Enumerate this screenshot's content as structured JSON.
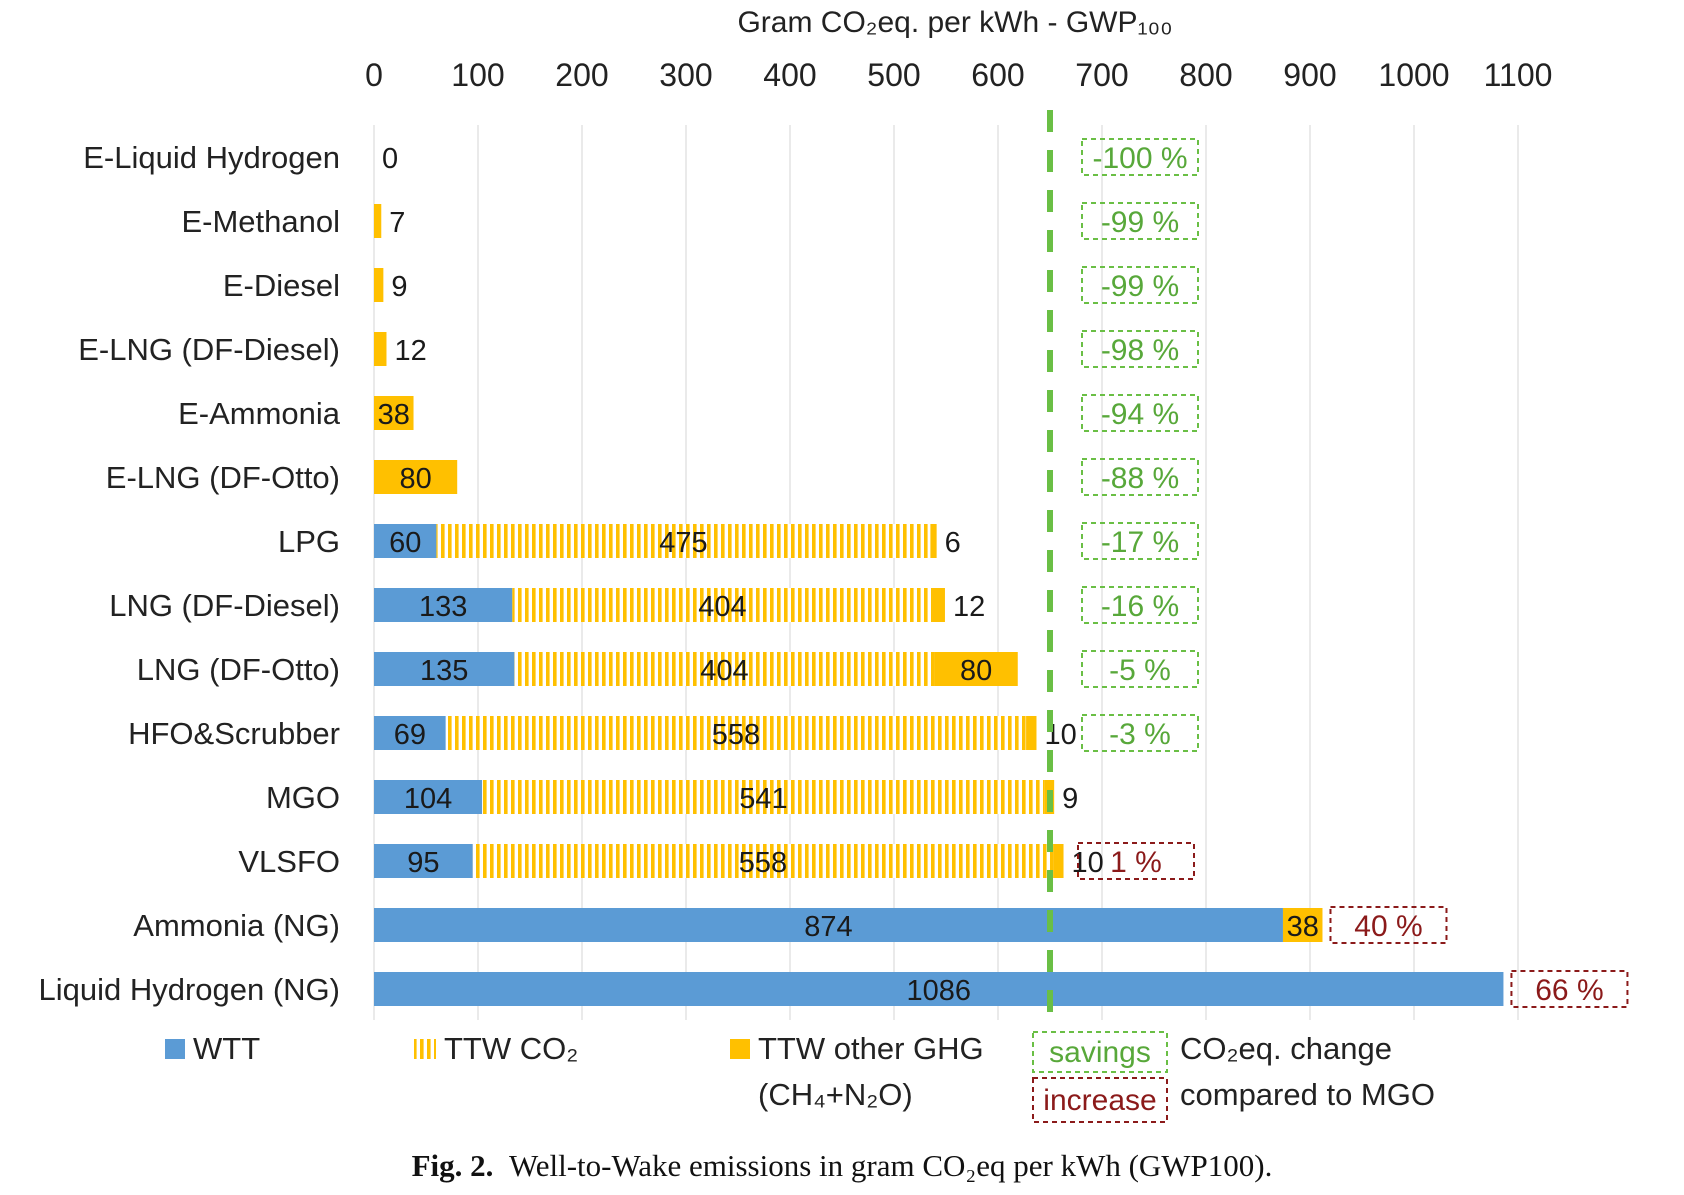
{
  "chart_data": {
    "type": "bar",
    "orientation": "horizontal",
    "stacked": true,
    "axis_title": "Gram CO₂eq. per kWh - GWP₁₀₀",
    "axis_position": "top",
    "xlim": [
      0,
      1100
    ],
    "ticks": [
      "0",
      "100",
      "200",
      "300",
      "400",
      "500",
      "600",
      "700",
      "800",
      "900",
      "1000",
      "1100"
    ],
    "tick_values": [
      0,
      100,
      200,
      300,
      400,
      500,
      600,
      700,
      800,
      900,
      1000,
      1100
    ],
    "grid": true,
    "reference_line": {
      "value": 650,
      "style": "dashed",
      "color": "#6abf45"
    },
    "categories": [
      "E-Liquid Hydrogen",
      "E-Methanol",
      "E-Diesel",
      "E-LNG (DF-Diesel)",
      "E-Ammonia",
      "E-LNG (DF-Otto)",
      "LPG",
      "LNG (DF-Diesel)",
      "LNG (DF-Otto)",
      "HFO&Scrubber",
      "MGO",
      "VLSFO",
      "Ammonia (NG)",
      "Liquid Hydrogen (NG)"
    ],
    "series": [
      {
        "name": "WTT",
        "color": "#5b9bd5",
        "pattern": "solid",
        "values": [
          0,
          0,
          0,
          0,
          0,
          0,
          60,
          133,
          135,
          69,
          104,
          95,
          874,
          1086
        ],
        "labels": [
          "",
          "",
          "",
          "",
          "",
          "",
          "60",
          "133",
          "135",
          "69",
          "104",
          "95",
          "874",
          "1086"
        ]
      },
      {
        "name": "TTW CO₂",
        "color": "#ffc000",
        "pattern": "vertical-stripes",
        "values": [
          0,
          0,
          0,
          0,
          0,
          0,
          475,
          404,
          404,
          558,
          541,
          558,
          0,
          0
        ],
        "labels": [
          "",
          "",
          "",
          "",
          "",
          "",
          "475",
          "404",
          "404",
          "558",
          "541",
          "558",
          "",
          ""
        ]
      },
      {
        "name": "TTW other GHG (CH₄+N₂O)",
        "color": "#ffc000",
        "pattern": "solid",
        "values": [
          0,
          7,
          9,
          12,
          38,
          80,
          6,
          12,
          80,
          10,
          9,
          10,
          38,
          0
        ],
        "labels": [
          "0",
          "7",
          "9",
          "12",
          "38",
          "80",
          "6",
          "12",
          "80",
          "10",
          "9",
          "10",
          "38",
          ""
        ]
      }
    ],
    "change_vs_mgo": [
      {
        "text": "-100 %",
        "kind": "savings"
      },
      {
        "text": "-99 %",
        "kind": "savings"
      },
      {
        "text": "-99 %",
        "kind": "savings"
      },
      {
        "text": "-98 %",
        "kind": "savings"
      },
      {
        "text": "-94 %",
        "kind": "savings"
      },
      {
        "text": "-88 %",
        "kind": "savings"
      },
      {
        "text": "-17 %",
        "kind": "savings"
      },
      {
        "text": "-16 %",
        "kind": "savings"
      },
      {
        "text": "-5 %",
        "kind": "savings"
      },
      {
        "text": "-3 %",
        "kind": "savings"
      },
      null,
      {
        "text": "1 %",
        "kind": "increase"
      },
      {
        "text": "40 %",
        "kind": "increase"
      },
      {
        "text": "66 %",
        "kind": "increase"
      }
    ],
    "legend": {
      "wtt": "WTT",
      "ttw_co2": "TTW CO₂",
      "ttw_other_line1": "TTW other GHG",
      "ttw_other_line2": "(CH₄+N₂O)",
      "savings": "savings",
      "increase": "increase",
      "change_line1": "CO₂eq. change",
      "change_line2": "compared to MGO"
    },
    "colors": {
      "wtt": "#5b9bd5",
      "ttw": "#ffc000",
      "savings": "#6abf45",
      "increase": "#8b1a1a",
      "grid": "#e4e4e4"
    }
  },
  "caption": {
    "label": "Fig. 2.",
    "text": "Well-to-Wake emissions in gram CO₂eq per kWh (GWP100)."
  }
}
